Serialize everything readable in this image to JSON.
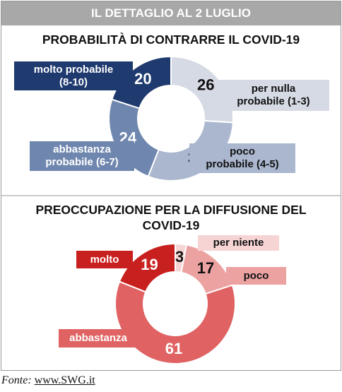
{
  "header": {
    "title": "IL DETTAGLIO AL 2 LUGLIO"
  },
  "chart_data": [
    {
      "type": "pie",
      "title": "PROBABILITÀ DI CONTRARRE IL COVID-19",
      "categories": [
        "molto probabile\n(8-10)",
        "per nulla\nprobabile (1-3)",
        "poco\nprobabile (4-5)",
        "abbastanza\nprobabile (6-7)"
      ],
      "values": [
        20,
        26,
        30,
        24
      ],
      "colors": [
        "#1f3a6e",
        "#d6dae4",
        "#aab7cf",
        "#6f87ae"
      ]
    },
    {
      "type": "pie",
      "title": "PREOCCUPAZIONE PER LA DIFFUSIONE DEL\nCOVID-19",
      "categories": [
        "molto",
        "per niente",
        "poco",
        "abbastanza"
      ],
      "values": [
        19,
        3,
        17,
        61
      ],
      "colors": [
        "#c8201e",
        "#f6d4d4",
        "#eda2a2",
        "#e06262"
      ]
    }
  ],
  "source": {
    "label": "Fonte:",
    "link": "www.SWG.it"
  }
}
